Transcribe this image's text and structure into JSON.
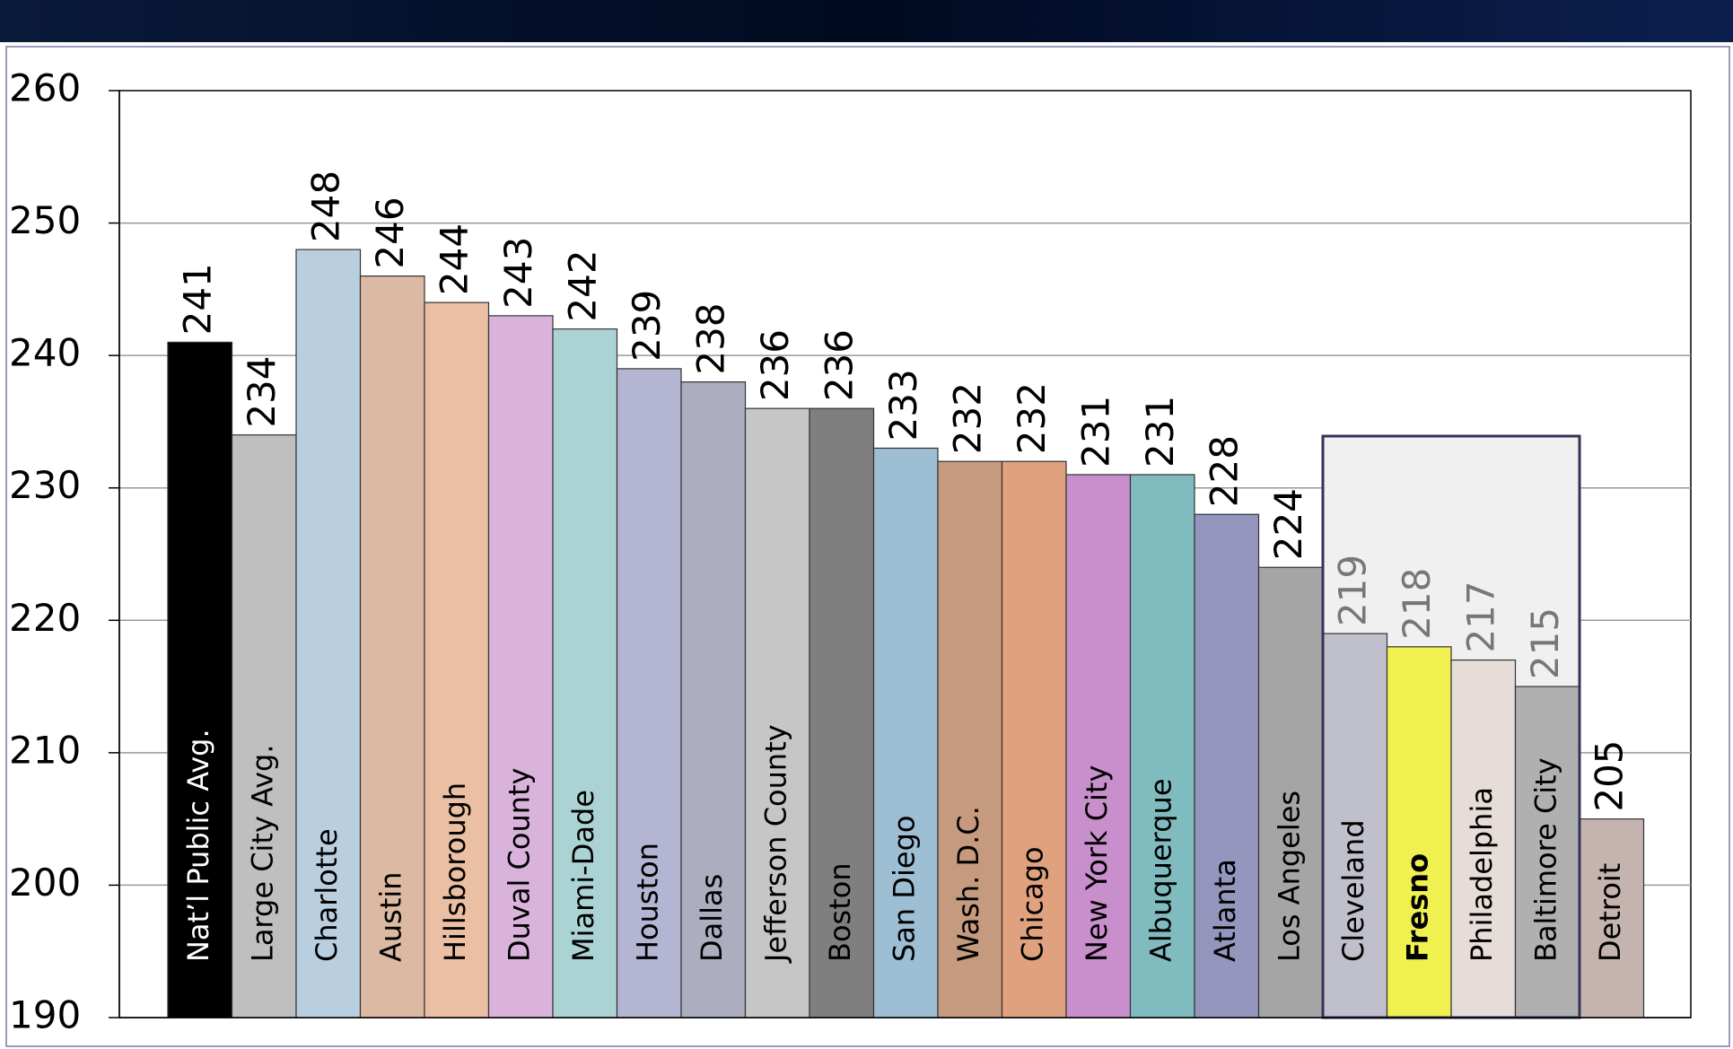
{
  "chart_data": {
    "type": "bar",
    "categories": [
      "Nat’l Public Avg.",
      "Large City Avg.",
      "Charlotte",
      "Austin",
      "Hillsborough",
      "Duval County",
      "Miami-Dade",
      "Houston",
      "Dallas",
      "Jefferson County",
      "Boston",
      "San Diego",
      "Wash. D.C.",
      "Chicago",
      "New York City",
      "Albuquerque",
      "Atlanta",
      "Los Angeles",
      "Cleveland",
      "Fresno",
      "Philadelphia",
      "Baltimore City",
      "Detroit"
    ],
    "values": [
      241,
      234,
      248,
      246,
      244,
      243,
      242,
      239,
      238,
      236,
      236,
      233,
      232,
      232,
      231,
      231,
      228,
      224,
      219,
      218,
      217,
      215,
      205
    ],
    "colors": [
      "#000000",
      "#bfbfbf",
      "#b9cfe0",
      "#dbb9a3",
      "#ebbfa3",
      "#dab3dd",
      "#acd3d4",
      "#b4b4d3",
      "#acaebf",
      "#c6c6c6",
      "#7f7f7f",
      "#9dbed3",
      "#c69a7e",
      "#e0a17f",
      "#c98fcc",
      "#80bcbf",
      "#9496be",
      "#a5a5a5",
      "#c0c0cc",
      "#f0f050",
      "#e6dcd8",
      "#b0b0b0",
      "#c4b3ae"
    ],
    "ylim": [
      190,
      260
    ],
    "yticks": [
      190,
      200,
      210,
      220,
      230,
      240,
      250,
      260
    ],
    "grid": true
  }
}
